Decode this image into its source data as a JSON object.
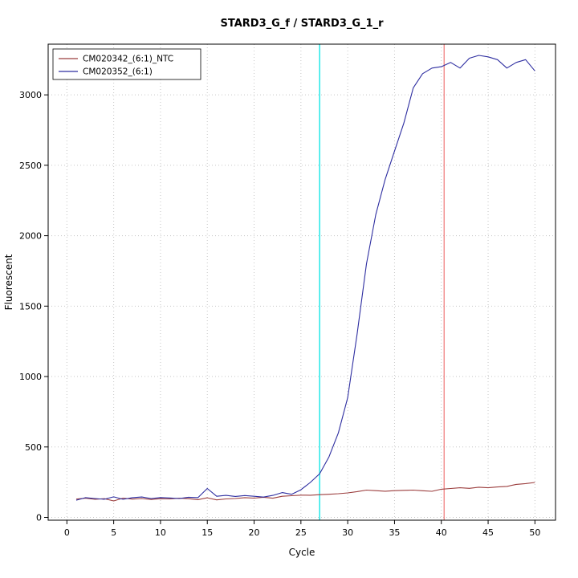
{
  "figure": {
    "title": "STARD3_G_f / STARD3_G_1_r"
  },
  "chart_data": {
    "type": "line",
    "title": "STARD3_G_f / STARD3_G_1_r",
    "xlabel": "Cycle",
    "ylabel": "Fluorescent",
    "xlim": [
      -2,
      52.2
    ],
    "ylim": [
      -20,
      3360
    ],
    "x_ticks": [
      0,
      5,
      10,
      15,
      20,
      25,
      30,
      35,
      40,
      45,
      50
    ],
    "y_ticks": [
      0,
      500,
      1000,
      1500,
      2000,
      2500,
      3000
    ],
    "grid": true,
    "grid_style": "dotted",
    "grid_color": "#c6c6c6",
    "legend_position": "top-left",
    "x": [
      1,
      2,
      3,
      4,
      5,
      6,
      7,
      8,
      9,
      10,
      11,
      12,
      13,
      14,
      15,
      16,
      17,
      18,
      19,
      20,
      21,
      22,
      23,
      24,
      25,
      26,
      27,
      28,
      29,
      30,
      31,
      32,
      33,
      34,
      35,
      36,
      37,
      38,
      39,
      40,
      41,
      42,
      43,
      44,
      45,
      46,
      47,
      48,
      49,
      50
    ],
    "series": [
      {
        "name": "CM020342_(6:1)_NTC",
        "color": "#9b3d3d",
        "values": [
          130,
          136,
          128,
          133,
          117,
          137,
          130,
          134,
          127,
          133,
          131,
          136,
          133,
          126,
          139,
          124,
          131,
          134,
          140,
          137,
          143,
          136,
          150,
          154,
          158,
          157,
          161,
          164,
          168,
          174,
          183,
          194,
          190,
          186,
          190,
          192,
          194,
          189,
          185,
          200,
          205,
          210,
          206,
          214,
          210,
          216,
          220,
          234,
          240,
          248
        ]
      },
      {
        "name": "CM020352_(6:1)",
        "color": "#2d2da0",
        "values": [
          122,
          140,
          134,
          129,
          146,
          128,
          140,
          145,
          134,
          141,
          138,
          134,
          143,
          140,
          205,
          150,
          156,
          149,
          155,
          150,
          144,
          156,
          176,
          164,
          196,
          248,
          310,
          430,
          600,
          850,
          1300,
          1800,
          2150,
          2400,
          2600,
          2800,
          3050,
          3150,
          3190,
          3200,
          3230,
          3190,
          3260,
          3280,
          3270,
          3250,
          3190,
          3230,
          3250,
          3170
        ]
      }
    ],
    "vlines": [
      {
        "x": 27,
        "color": "#00e5e5",
        "name": "threshold-line-cyan"
      },
      {
        "x": 40.3,
        "color": "#f08080",
        "name": "cutoff-line-salmon"
      }
    ]
  }
}
